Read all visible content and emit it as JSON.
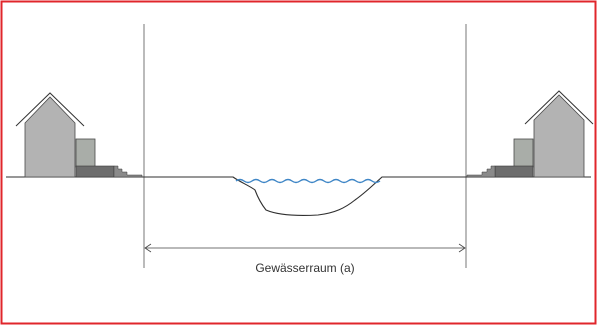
{
  "figure": {
    "dimension_label": "Gewässerraum (a)",
    "colors": {
      "border": "#e0262b",
      "water": "#3f86c6",
      "house_main": "#b3b3b3",
      "house_annex": "#a8aca8",
      "steps": "#707070",
      "line": "#3a3a3a"
    }
  }
}
